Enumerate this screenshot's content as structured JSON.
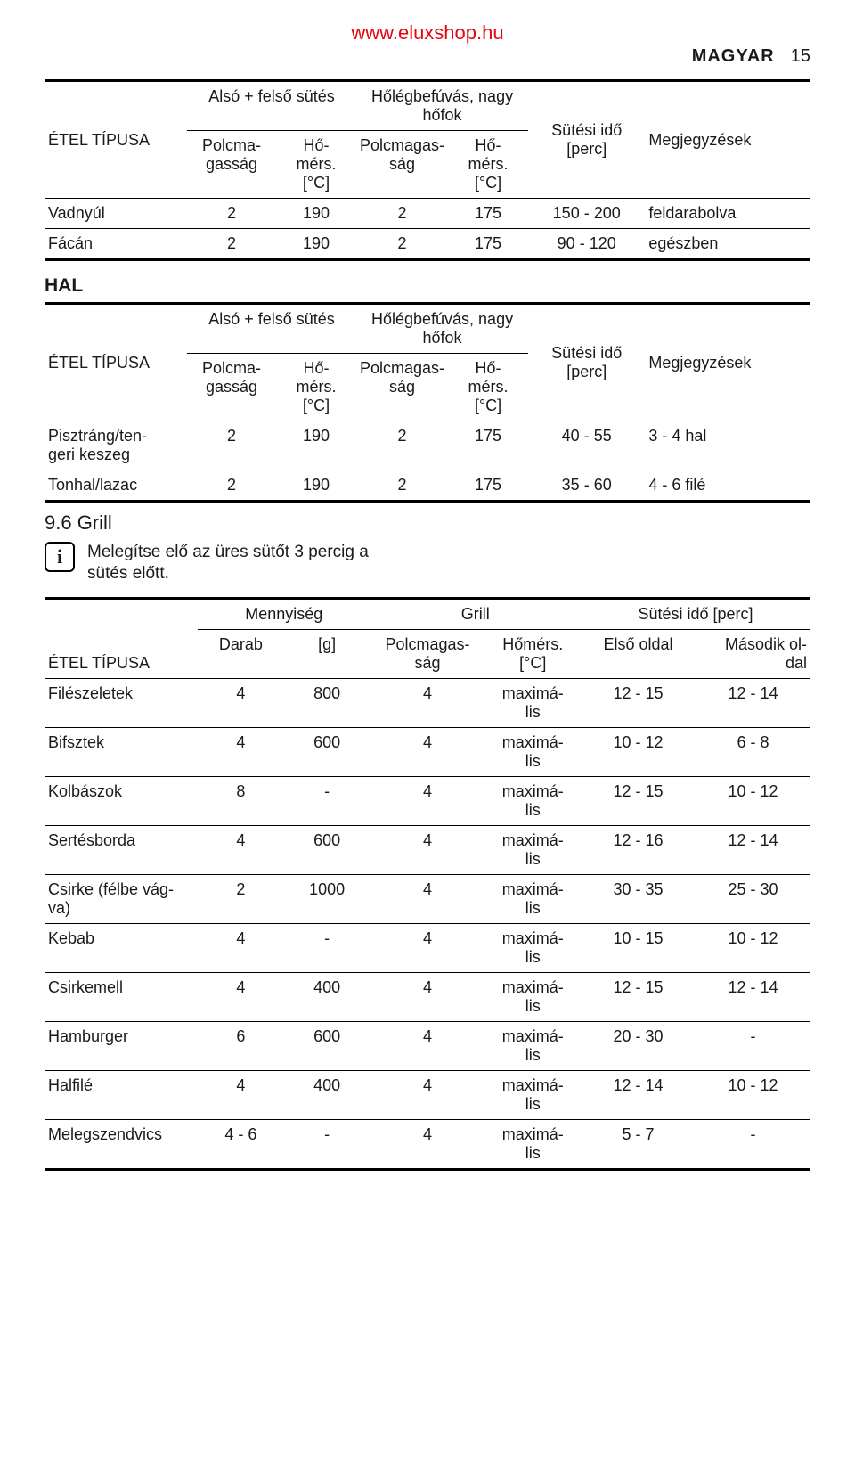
{
  "header": {
    "url": "www.eluxshop.hu",
    "lang": "MAGYAR",
    "page": "15"
  },
  "t1": {
    "head": {
      "type": "ÉTEL TÍPUSA",
      "group1": "Alsó + felső sütés",
      "group2": "Hőlégbefúvás, nagy hőfok",
      "shelf": "Polcma-\ngasság",
      "temp": "Hő-\nmérs.\n[°C]",
      "shelf2": "Polcmagas-\nság",
      "temp2": "Hő-\nmérs.\n[°C]",
      "time": "Sütési idő\n[perc]",
      "notes": "Megjegyzések"
    },
    "rows": [
      {
        "name": "Vadnyúl",
        "s1": "2",
        "t1": "190",
        "s2": "2",
        "t2": "175",
        "time": "150 - 200",
        "note": "feldarabolva"
      },
      {
        "name": "Fácán",
        "s1": "2",
        "t1": "190",
        "s2": "2",
        "t2": "175",
        "time": "90 - 120",
        "note": "egészben"
      }
    ]
  },
  "hal_title": "HAL",
  "t2": {
    "rows": [
      {
        "name": "Pisztráng/ten-\ngeri keszeg",
        "s1": "2",
        "t1": "190",
        "s2": "2",
        "t2": "175",
        "time": "40 - 55",
        "note": "3 - 4 hal"
      },
      {
        "name": "Tonhal/lazac",
        "s1": "2",
        "t1": "190",
        "s2": "2",
        "t2": "175",
        "time": "35 - 60",
        "note": "4 - 6 filé"
      }
    ]
  },
  "grill": {
    "heading": "9.6 Grill",
    "info": "Melegítse elő az üres sütőt 3 percig a sütés előtt.",
    "head": {
      "qty": "Mennyiség",
      "grill": "Grill",
      "time": "Sütési idő [perc]",
      "type": "ÉTEL TÍPUSA",
      "pcs": "Darab",
      "g": "[g]",
      "shelf": "Polcmagas-\nság",
      "temp": "Hőmérs.\n[°C]",
      "first": "Első oldal",
      "second": "Második ol-\ndal"
    },
    "rows": [
      {
        "name": "Filészeletek",
        "pcs": "4",
        "g": "800",
        "shelf": "4",
        "temp": "maximá-\nlis",
        "a": "12 - 15",
        "b": "12 - 14"
      },
      {
        "name": "Bifsztek",
        "pcs": "4",
        "g": "600",
        "shelf": "4",
        "temp": "maximá-\nlis",
        "a": "10 - 12",
        "b": "6 - 8"
      },
      {
        "name": "Kolbászok",
        "pcs": "8",
        "g": "-",
        "shelf": "4",
        "temp": "maximá-\nlis",
        "a": "12 - 15",
        "b": "10 - 12"
      },
      {
        "name": "Sertésborda",
        "pcs": "4",
        "g": "600",
        "shelf": "4",
        "temp": "maximá-\nlis",
        "a": "12 - 16",
        "b": "12 - 14"
      },
      {
        "name": "Csirke (félbe vág-\nva)",
        "pcs": "2",
        "g": "1000",
        "shelf": "4",
        "temp": "maximá-\nlis",
        "a": "30 - 35",
        "b": "25 - 30"
      },
      {
        "name": "Kebab",
        "pcs": "4",
        "g": "-",
        "shelf": "4",
        "temp": "maximá-\nlis",
        "a": "10 - 15",
        "b": "10 - 12"
      },
      {
        "name": "Csirkemell",
        "pcs": "4",
        "g": "400",
        "shelf": "4",
        "temp": "maximá-\nlis",
        "a": "12 - 15",
        "b": "12 - 14"
      },
      {
        "name": "Hamburger",
        "pcs": "6",
        "g": "600",
        "shelf": "4",
        "temp": "maximá-\nlis",
        "a": "20 - 30",
        "b": "-"
      },
      {
        "name": "Halfilé",
        "pcs": "4",
        "g": "400",
        "shelf": "4",
        "temp": "maximá-\nlis",
        "a": "12 - 14",
        "b": "10 - 12"
      },
      {
        "name": "Melegszendvics",
        "pcs": "4 - 6",
        "g": "-",
        "shelf": "4",
        "temp": "maximá-\nlis",
        "a": "5 - 7",
        "b": "-"
      }
    ]
  }
}
